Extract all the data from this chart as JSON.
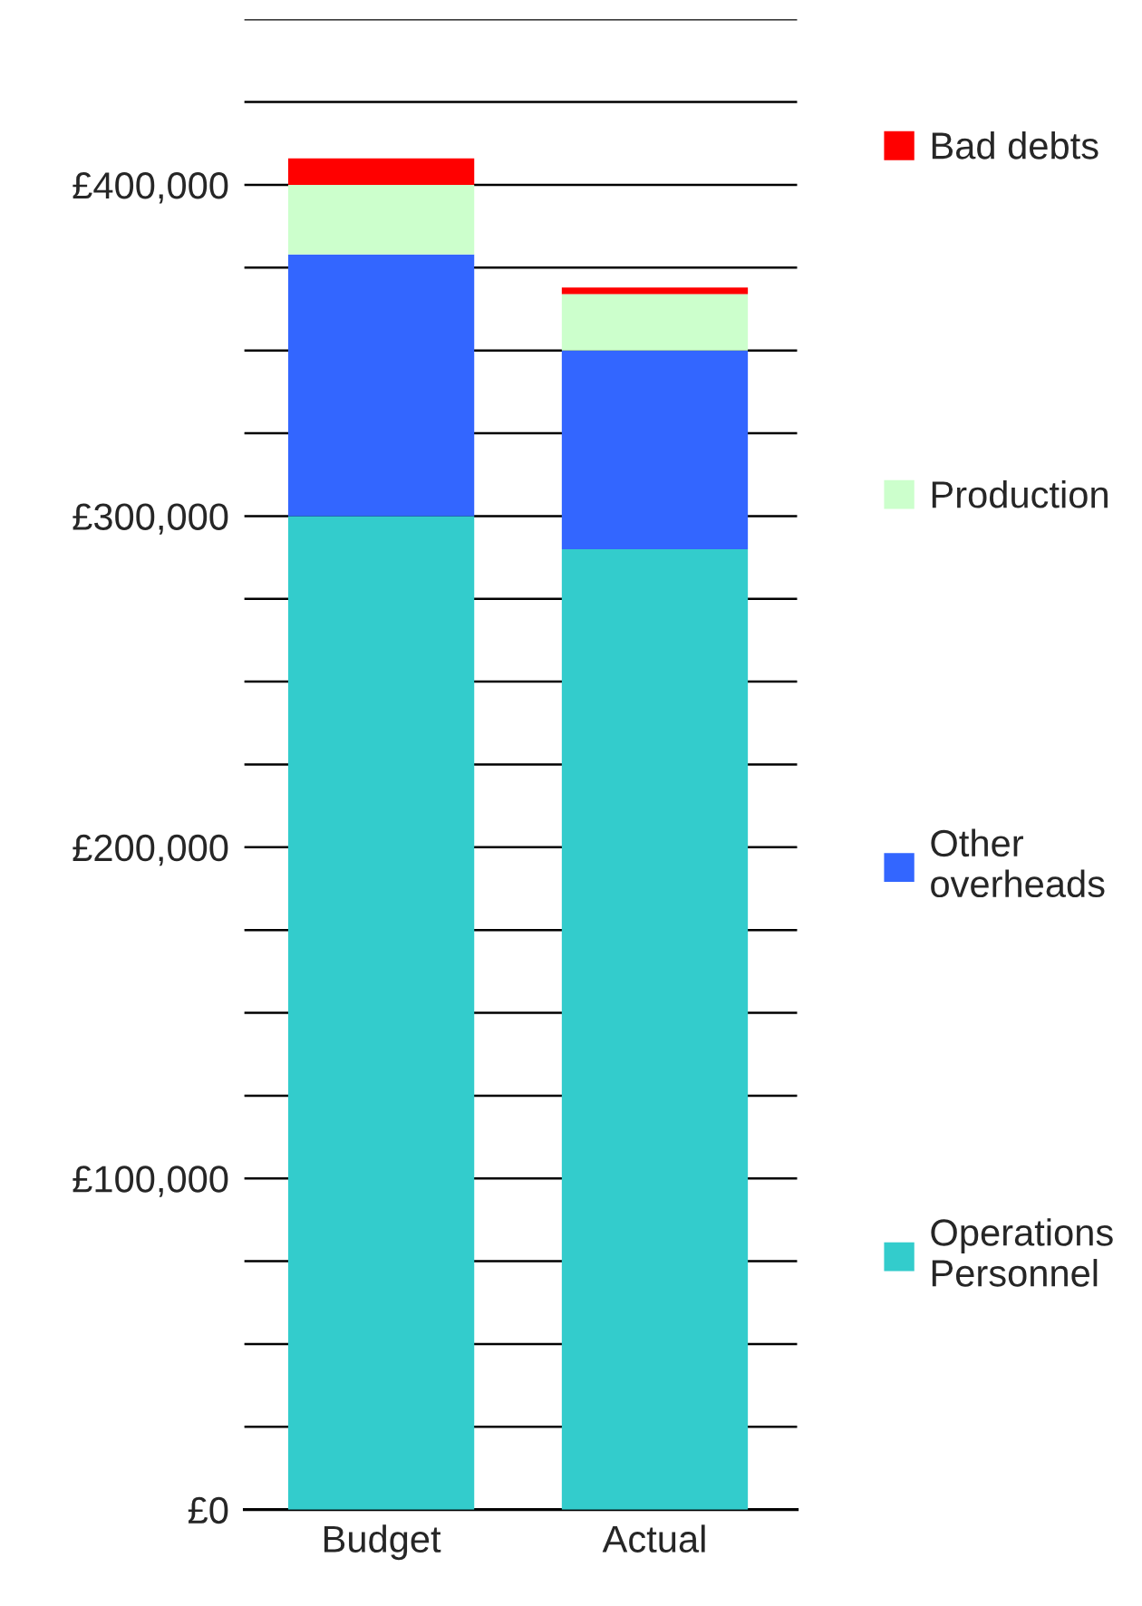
{
  "chart_data": {
    "type": "bar",
    "stacked": true,
    "categories": [
      "Budget",
      "Actual"
    ],
    "series": [
      {
        "name": "Operations\nPersonnel",
        "color": "#33cccc",
        "values": [
          300000,
          290000
        ]
      },
      {
        "name": "Other\noverheads",
        "color": "#3366ff",
        "values": [
          79000,
          60000
        ]
      },
      {
        "name": "Production",
        "color": "#ccffcc",
        "values": [
          21000,
          17000
        ]
      },
      {
        "name": "Bad debts",
        "color": "#ff0000",
        "values": [
          8000,
          2000
        ]
      }
    ],
    "ylim": [
      0,
      450000
    ],
    "yticks": [
      {
        "value": 0,
        "label": "£0"
      },
      {
        "value": 25000,
        "label": null
      },
      {
        "value": 50000,
        "label": null
      },
      {
        "value": 75000,
        "label": null
      },
      {
        "value": 100000,
        "label": "£100,000"
      },
      {
        "value": 125000,
        "label": null
      },
      {
        "value": 150000,
        "label": null
      },
      {
        "value": 175000,
        "label": null
      },
      {
        "value": 200000,
        "label": "£200,000"
      },
      {
        "value": 225000,
        "label": null
      },
      {
        "value": 250000,
        "label": null
      },
      {
        "value": 275000,
        "label": null
      },
      {
        "value": 300000,
        "label": "£300,000"
      },
      {
        "value": 325000,
        "label": null
      },
      {
        "value": 350000,
        "label": null
      },
      {
        "value": 375000,
        "label": null
      },
      {
        "value": 400000,
        "label": "£400,000"
      },
      {
        "value": 425000,
        "label": null
      },
      {
        "value": 450000,
        "label": null
      }
    ],
    "grid": "y",
    "legend": "right"
  }
}
